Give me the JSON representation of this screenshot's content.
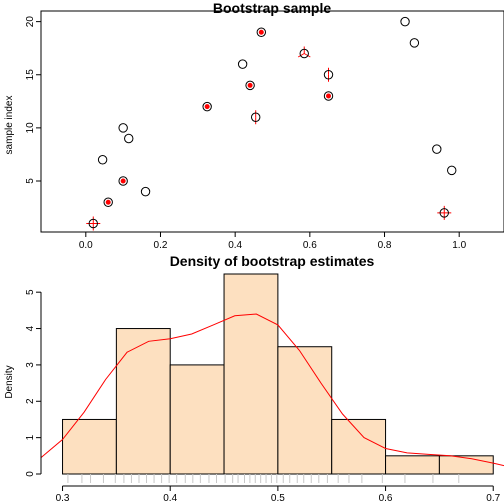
{
  "chart_data": [
    {
      "type": "scatter",
      "title": "Bootstrap sample",
      "xlabel": "",
      "ylabel": "sample index",
      "xlim": [
        -0.12,
        1.12
      ],
      "ylim": [
        0.2,
        21
      ],
      "x_ticks": [
        0.0,
        0.2,
        0.4,
        0.6,
        0.8,
        1.0
      ],
      "x_tick_labels": [
        "0.0",
        "0.2",
        "0.4",
        "0.6",
        "0.8",
        "1.0"
      ],
      "y_ticks": [
        5,
        10,
        15,
        20
      ],
      "y_tick_labels": [
        "5",
        "10",
        "15",
        "20"
      ],
      "grid": false,
      "colors": {
        "open_point": "#000000",
        "selected": "#ff0000"
      },
      "points": [
        {
          "index": 1,
          "x": 0.02,
          "selected_count": 4
        },
        {
          "index": 2,
          "x": 0.96,
          "selected_count": 4
        },
        {
          "index": 3,
          "x": 0.06,
          "selected_count": 1
        },
        {
          "index": 4,
          "x": 0.16,
          "selected_count": 0
        },
        {
          "index": 5,
          "x": 0.1,
          "selected_count": 1
        },
        {
          "index": 6,
          "x": 0.98,
          "selected_count": 0
        },
        {
          "index": 7,
          "x": 0.045,
          "selected_count": 0
        },
        {
          "index": 8,
          "x": 0.94,
          "selected_count": 0
        },
        {
          "index": 9,
          "x": 0.115,
          "selected_count": 0
        },
        {
          "index": 10,
          "x": 0.1,
          "selected_count": 0
        },
        {
          "index": 11,
          "x": 0.455,
          "selected_count": 2
        },
        {
          "index": 12,
          "x": 0.325,
          "selected_count": 1
        },
        {
          "index": 13,
          "x": 0.65,
          "selected_count": 1
        },
        {
          "index": 14,
          "x": 0.44,
          "selected_count": 1
        },
        {
          "index": 15,
          "x": 0.65,
          "selected_count": 2
        },
        {
          "index": 16,
          "x": 0.42,
          "selected_count": 0
        },
        {
          "index": 17,
          "x": 0.585,
          "selected_count": 3
        },
        {
          "index": 18,
          "x": 0.88,
          "selected_count": 0
        },
        {
          "index": 19,
          "x": 0.47,
          "selected_count": 1
        },
        {
          "index": 20,
          "x": 0.855,
          "selected_count": 0
        }
      ]
    },
    {
      "type": "bar",
      "subtype": "histogram",
      "title": "Density of bootstrap estimates",
      "xlabel": "",
      "ylabel": "Density",
      "xlim": [
        0.28,
        0.71
      ],
      "ylim": [
        0,
        5.5
      ],
      "x_ticks": [
        0.3,
        0.4,
        0.5,
        0.6,
        0.7
      ],
      "x_tick_labels": [
        "0.3",
        "0.4",
        "0.5",
        "0.6",
        "0.7"
      ],
      "y_ticks": [
        0,
        1,
        2,
        3,
        4,
        5
      ],
      "y_tick_labels": [
        "0",
        "1",
        "2",
        "3",
        "4",
        "5"
      ],
      "grid": false,
      "colors": {
        "bar_fill": "#fde0c0",
        "bar_border": "#000000",
        "density_line": "#ff0000",
        "rug": "#c8c8c8"
      },
      "bins": [
        {
          "from": 0.3,
          "to": 0.35,
          "value": 1.5
        },
        {
          "from": 0.35,
          "to": 0.4,
          "value": 4.0
        },
        {
          "from": 0.4,
          "to": 0.45,
          "value": 3.0
        },
        {
          "from": 0.45,
          "to": 0.5,
          "value": 5.5
        },
        {
          "from": 0.5,
          "to": 0.55,
          "value": 3.5
        },
        {
          "from": 0.55,
          "to": 0.6,
          "value": 1.5
        },
        {
          "from": 0.6,
          "to": 0.65,
          "value": 0.5
        },
        {
          "from": 0.65,
          "to": 0.7,
          "value": 0.5
        }
      ],
      "density_curve": {
        "x": [
          0.28,
          0.3,
          0.32,
          0.34,
          0.36,
          0.38,
          0.4,
          0.42,
          0.44,
          0.46,
          0.48,
          0.5,
          0.52,
          0.54,
          0.56,
          0.58,
          0.6,
          0.62,
          0.64,
          0.66,
          0.68,
          0.7,
          0.71
        ],
        "y": [
          0.45,
          0.95,
          1.7,
          2.6,
          3.35,
          3.65,
          3.72,
          3.85,
          4.1,
          4.35,
          4.4,
          4.1,
          3.4,
          2.5,
          1.65,
          1.0,
          0.7,
          0.58,
          0.54,
          0.5,
          0.42,
          0.3,
          0.23
        ]
      },
      "rug": [
        0.305,
        0.318,
        0.326,
        0.338,
        0.349,
        0.357,
        0.364,
        0.371,
        0.378,
        0.385,
        0.392,
        0.399,
        0.406,
        0.414,
        0.421,
        0.428,
        0.436,
        0.443,
        0.451,
        0.458,
        0.463,
        0.469,
        0.474,
        0.479,
        0.484,
        0.489,
        0.494,
        0.499,
        0.505,
        0.511,
        0.518,
        0.524,
        0.531,
        0.538,
        0.546,
        0.556,
        0.566,
        0.578,
        0.597,
        0.618,
        0.644,
        0.668
      ]
    }
  ]
}
